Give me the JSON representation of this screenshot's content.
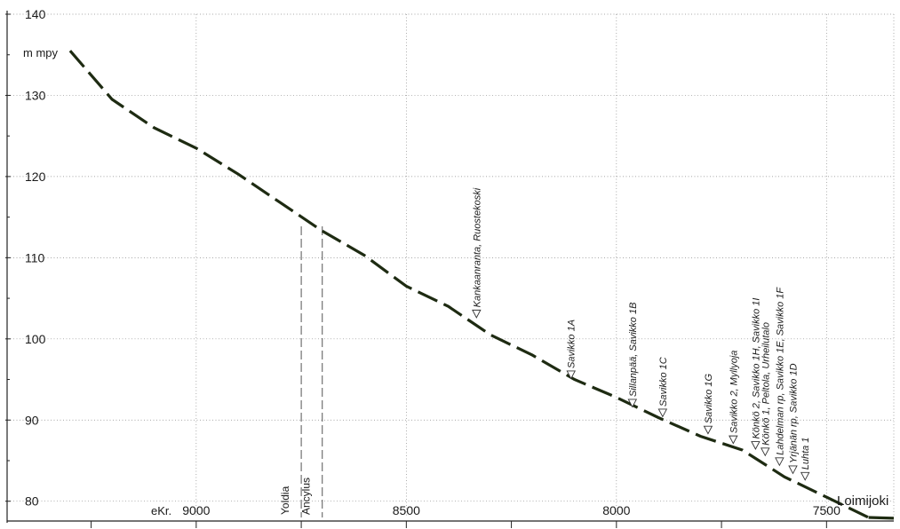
{
  "chart_data": {
    "type": "line",
    "title": "",
    "ylabel": "m mpy",
    "xlabel": "",
    "x_prefix": "eKr.",
    "xlim": [
      9450,
      7340
    ],
    "ylim": [
      78,
      140
    ],
    "x_ticks": [
      "9000",
      "8500",
      "8000",
      "7500"
    ],
    "y_ticks": [
      "80",
      "90",
      "100",
      "110",
      "120",
      "130",
      "140"
    ],
    "grid": true,
    "series": [
      {
        "name": "",
        "x": [
          9300,
          9200,
          9100,
          9000,
          8900,
          8800,
          8700,
          8600,
          8500,
          8400,
          8300,
          8200,
          8100,
          8000,
          7900,
          7800,
          7700,
          7600,
          7500,
          7400
        ],
        "y": [
          135.5,
          129.5,
          126,
          123.5,
          120.3,
          116.8,
          113.3,
          110.3,
          106.5,
          104,
          100.5,
          98,
          95,
          92.8,
          90.3,
          88,
          86.3,
          83,
          80.5,
          78
        ]
      }
    ],
    "end_segment": {
      "x": [
        7400,
        7340
      ],
      "y": [
        78,
        77.9
      ]
    },
    "end_label": "Loimijoki",
    "shorelines": [
      {
        "label": "Yoldia",
        "x": 8750
      },
      {
        "label": "Ancylus",
        "x": 8700
      }
    ],
    "sites": [
      {
        "label": "Kankaanranta, Ruostekoski",
        "x": 8333,
        "y": 103
      },
      {
        "label": "Savikko 1A",
        "x": 8108,
        "y": 95.5
      },
      {
        "label": "Sillanpää, Savikko 1B",
        "x": 7962,
        "y": 92
      },
      {
        "label": "Savikko 1C",
        "x": 7890,
        "y": 90.8
      },
      {
        "label": "Savikko 1G",
        "x": 7782,
        "y": 88.7
      },
      {
        "label": "Savikko 2, Myllyoja",
        "x": 7722,
        "y": 87.5
      },
      {
        "label": "Könkö 2, Savikko 1H, Savikko 1I",
        "x": 7669,
        "y": 86.8
      },
      {
        "label": "Könkö 1, Peltola, Urheilutalo",
        "x": 7646,
        "y": 86
      },
      {
        "label": "Lahdelman rp, Savikko 1E, Savikko 1F",
        "x": 7612,
        "y": 84.8
      },
      {
        "label": "Yrjänän rp, Savikko 1D",
        "x": 7580,
        "y": 83.8
      },
      {
        "label": "Luhta 1",
        "x": 7551,
        "y": 83
      }
    ]
  }
}
